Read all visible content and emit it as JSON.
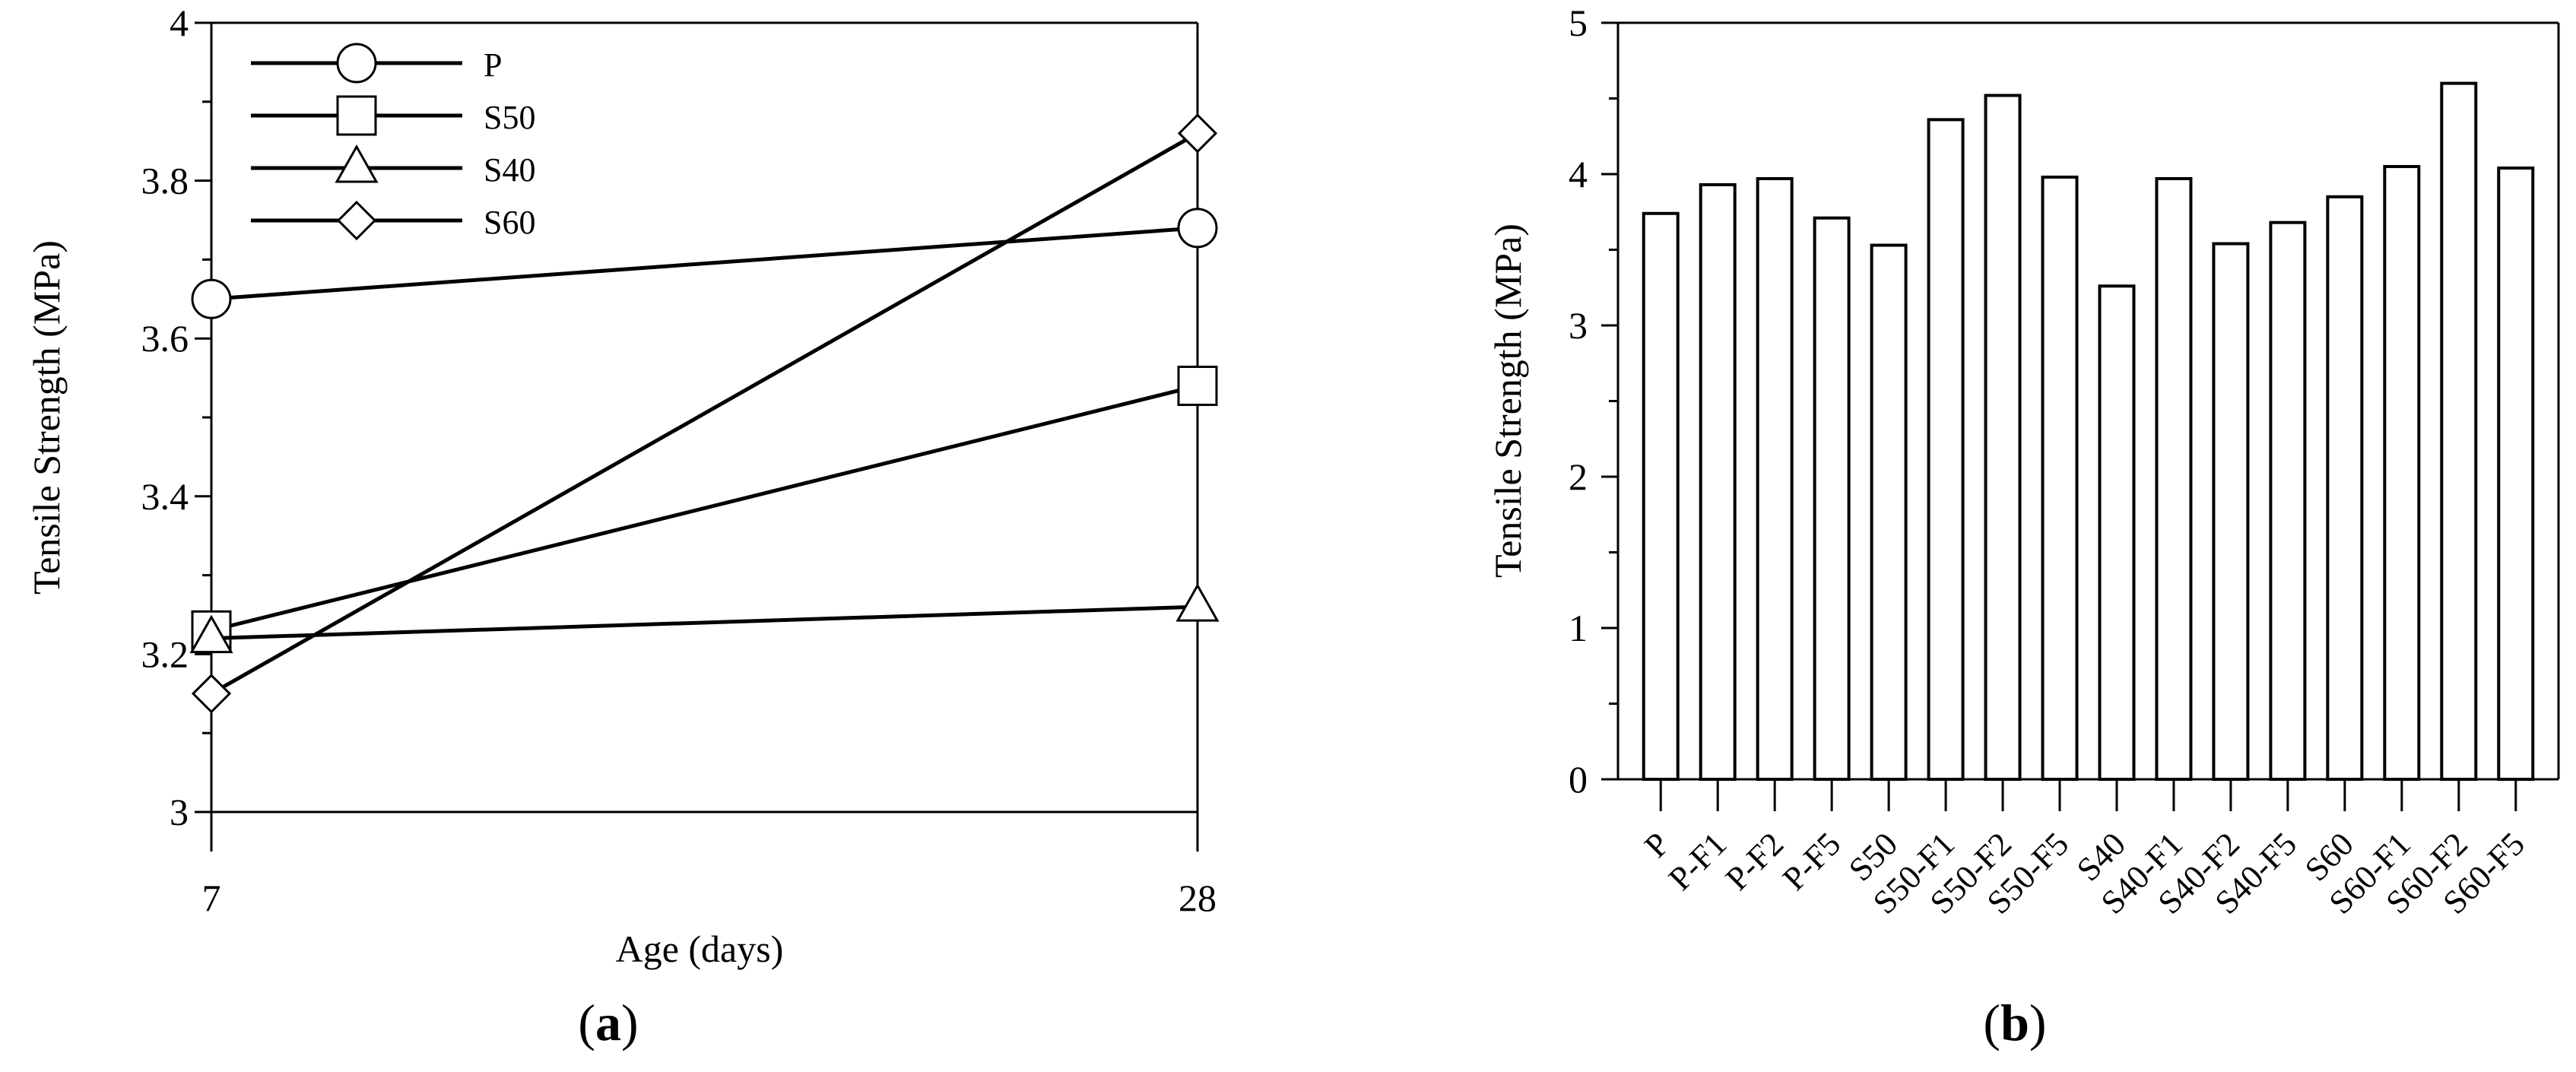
{
  "chart_data": [
    {
      "type": "line",
      "panel_label": "a",
      "xlabel": "Age (days)",
      "ylabel": "Tensile Strength (MPa)",
      "x": [
        7,
        28
      ],
      "x_tick_labels": [
        "7",
        "28"
      ],
      "ylim": [
        3,
        4
      ],
      "y_ticks": [
        3,
        3.2,
        3.4,
        3.6,
        3.8,
        4
      ],
      "y_tick_labels": [
        "3",
        "3.2",
        "3.4",
        "3.6",
        "3.8",
        "4"
      ],
      "grid": false,
      "legend_position": "top-left",
      "series": [
        {
          "name": "P",
          "marker": "circle",
          "values": [
            3.65,
            3.74
          ]
        },
        {
          "name": "S50",
          "marker": "square",
          "values": [
            3.23,
            3.54
          ]
        },
        {
          "name": "S40",
          "marker": "triangle",
          "values": [
            3.22,
            3.26
          ]
        },
        {
          "name": "S60",
          "marker": "diamond",
          "values": [
            3.15,
            3.86
          ]
        }
      ]
    },
    {
      "type": "bar",
      "panel_label": "b",
      "xlabel": "",
      "ylabel": "Tensile Strength (MPa)",
      "ylim": [
        0,
        5
      ],
      "y_ticks": [
        0,
        1,
        2,
        3,
        4,
        5
      ],
      "y_tick_labels": [
        "0",
        "1",
        "2",
        "3",
        "4",
        "5"
      ],
      "grid": false,
      "categories": [
        "P",
        "P-F1",
        "P-F2",
        "P-F5",
        "S50",
        "S50-F1",
        "S50-F2",
        "S50-F5",
        "S40",
        "S40-F1",
        "S40-F2",
        "S40-F5",
        "S60",
        "S60-F1",
        "S60-F2",
        "S60-F5"
      ],
      "values": [
        3.74,
        3.93,
        3.97,
        3.71,
        3.53,
        4.36,
        4.52,
        3.98,
        3.26,
        3.97,
        3.54,
        3.68,
        3.85,
        4.05,
        4.6,
        4.04
      ]
    }
  ]
}
